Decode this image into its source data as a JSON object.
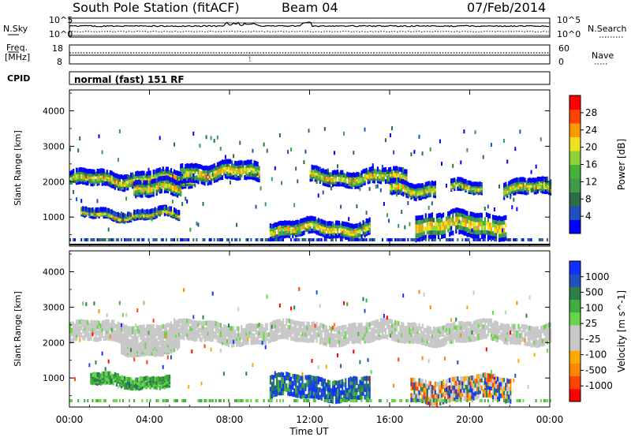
{
  "header": {
    "station": "South Pole Station (fitACF)",
    "beam": "Beam 04",
    "date": "07/Feb/2014"
  },
  "left_labels": {
    "nsky": "N.Sky",
    "freq_line1": "Freq.",
    "freq_line2": "[MHz]",
    "cpid": "CPID"
  },
  "right_labels": {
    "nsearch": "N.Search",
    "nave": "Nave"
  },
  "noise_axis": {
    "left_top": "10^5",
    "left_bottom": "10^0",
    "right_top": "10^5",
    "right_bottom": "10^0"
  },
  "freq_axis": {
    "left_ticks": [
      "18",
      "8"
    ],
    "right_ticks": [
      "60",
      "0"
    ]
  },
  "mode_text": "normal (fast) 151 RF",
  "chart_data": [
    {
      "type": "heatmap",
      "name": "power",
      "ylabel": "Slant Range [km]",
      "ylim": [
        180,
        4590
      ],
      "yticks": [
        1000,
        2000,
        3000,
        4000
      ],
      "xticks": [
        "00:00",
        "04:00",
        "08:00",
        "12:00",
        "16:00",
        "20:00",
        "00:00"
      ],
      "xlim_hours": [
        0,
        24
      ],
      "colorbar": {
        "label": "Power [dB]",
        "ticks": [
          "28",
          "24",
          "20",
          "16",
          "12",
          "8",
          "4"
        ],
        "colors": [
          "#0000ff",
          "#2050c0",
          "#2c6e4a",
          "#3f9a4a",
          "#46b23c",
          "#8fd23a",
          "#f0e020",
          "#ff9900",
          "#ff4400",
          "#ff0000"
        ]
      },
      "bands": [
        {
          "t0": 0.0,
          "t1": 6.2,
          "center": 2050,
          "width": 170,
          "slope": 0
        },
        {
          "t0": 3.2,
          "t1": 5.6,
          "center": 1780,
          "width": 180,
          "slope": 0
        },
        {
          "t0": 5.5,
          "t1": 9.5,
          "center": 2250,
          "width": 210,
          "slope": 0
        },
        {
          "t0": 12.0,
          "t1": 16.8,
          "center": 2100,
          "width": 170,
          "slope": 0
        },
        {
          "t0": 16.0,
          "t1": 18.3,
          "center": 1780,
          "width": 170,
          "slope": 0
        },
        {
          "t0": 19.0,
          "t1": 20.6,
          "center": 1800,
          "width": 120,
          "slope": 0
        },
        {
          "t0": 21.6,
          "t1": 24.0,
          "center": 1800,
          "width": 170,
          "slope": 0
        },
        {
          "t0": 10.0,
          "t1": 15.0,
          "center": 650,
          "width": 180,
          "slope": 0
        },
        {
          "t0": 17.2,
          "t1": 21.8,
          "center": 750,
          "width": 300,
          "slope": 0
        },
        {
          "t0": 0.5,
          "t1": 5.5,
          "center": 1050,
          "width": 90,
          "slope": 0
        }
      ]
    },
    {
      "type": "heatmap",
      "name": "velocity",
      "ylabel": "Slant Range [km]",
      "ylim": [
        180,
        4590
      ],
      "yticks": [
        1000,
        2000,
        3000,
        4000
      ],
      "xticks": [
        "00:00",
        "04:00",
        "08:00",
        "12:00",
        "16:00",
        "20:00",
        "00:00"
      ],
      "xlim_hours": [
        0,
        24
      ],
      "xlabel": "Time UT",
      "colorbar": {
        "label": "Velocity [m s^-1]",
        "ticks": [
          "1000",
          "500",
          "100",
          "25",
          "-25",
          "-100",
          "-500",
          "-1000"
        ],
        "colors": [
          "#ff0000",
          "#ff4400",
          "#ff8800",
          "#ffaa00",
          "#c8c8c8",
          "#c8c8c8",
          "#6ad44a",
          "#3fae3f",
          "#2c7e4a",
          "#2050c0",
          "#1030ff"
        ]
      },
      "bands": [
        {
          "t0": 0.0,
          "t1": 24.0,
          "center": 2250,
          "width": 230,
          "slope": 0,
          "kind": "gray"
        },
        {
          "t0": 2.5,
          "t1": 5.5,
          "center": 1850,
          "width": 130,
          "slope": 0,
          "kind": "gray"
        },
        {
          "t0": 10.0,
          "t1": 15.0,
          "center": 700,
          "width": 260,
          "slope": 0,
          "kind": "greenblue"
        },
        {
          "t0": 17.0,
          "t1": 22.0,
          "center": 650,
          "width": 280,
          "slope": 0,
          "kind": "mixed"
        },
        {
          "t0": 1.0,
          "t1": 5.0,
          "center": 900,
          "width": 120,
          "slope": 0,
          "kind": "green"
        }
      ]
    }
  ]
}
